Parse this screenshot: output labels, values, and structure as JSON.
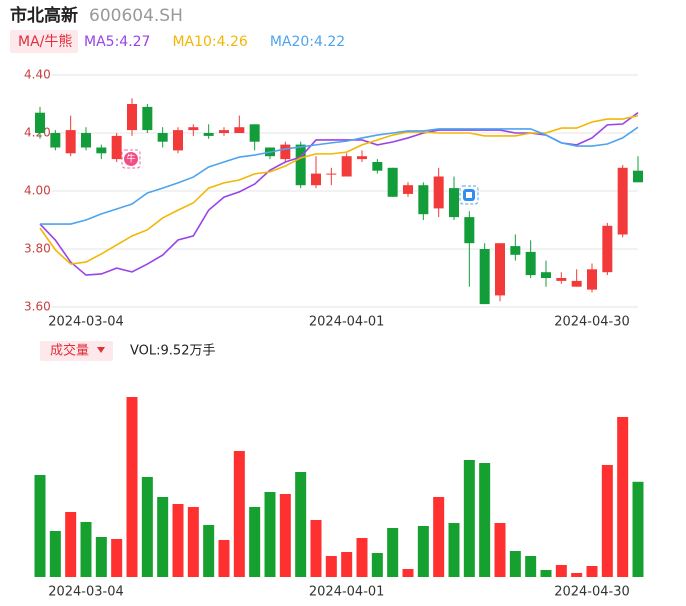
{
  "header": {
    "title": "市北高新",
    "code": "600604.SH",
    "indicator_tab": "MA/牛熊",
    "volume_tab": "成交量",
    "volume_label": "VOL:9.52万手"
  },
  "chart_data": [
    {
      "type": "candlestick",
      "categories": [
        null,
        null,
        null,
        "2024-03-04",
        null,
        null,
        null,
        null,
        null,
        null,
        null,
        null,
        null,
        null,
        null,
        null,
        null,
        null,
        null,
        null,
        "2024-04-01",
        null,
        null,
        null,
        null,
        null,
        null,
        null,
        null,
        null,
        null,
        null,
        null,
        null,
        null,
        null,
        "2024-04-30",
        null,
        null,
        null
      ],
      "open": [
        4.27,
        4.2,
        4.13,
        4.2,
        4.15,
        4.11,
        4.21,
        4.29,
        4.2,
        4.14,
        4.21,
        4.2,
        4.2,
        4.2,
        4.23,
        4.15,
        4.11,
        4.16,
        4.02,
        4.06,
        4.05,
        4.11,
        4.1,
        4.08,
        3.99,
        4.02,
        3.94,
        4.01,
        3.91,
        3.8,
        3.64,
        3.81,
        3.79,
        3.72,
        3.69,
        3.67,
        3.66,
        3.72,
        3.85,
        4.07
      ],
      "close": [
        4.2,
        4.15,
        4.21,
        4.15,
        4.13,
        4.19,
        4.3,
        4.21,
        4.17,
        4.21,
        4.22,
        4.19,
        4.21,
        4.22,
        4.17,
        4.12,
        4.16,
        4.02,
        4.06,
        4.06,
        4.12,
        4.12,
        4.07,
        3.98,
        4.02,
        3.92,
        4.05,
        3.91,
        3.82,
        3.61,
        3.82,
        3.78,
        3.71,
        3.7,
        3.7,
        3.69,
        3.73,
        3.88,
        4.08,
        4.03
      ],
      "high": [
        4.29,
        4.21,
        4.26,
        4.22,
        4.16,
        4.2,
        4.32,
        4.3,
        4.22,
        4.22,
        4.23,
        4.23,
        4.22,
        4.26,
        4.23,
        4.15,
        4.17,
        4.17,
        4.12,
        4.08,
        4.13,
        4.14,
        4.11,
        4.08,
        4.03,
        4.03,
        4.08,
        4.05,
        3.93,
        3.82,
        3.82,
        3.85,
        3.83,
        3.76,
        3.72,
        3.73,
        3.75,
        3.89,
        4.09,
        4.12
      ],
      "low": [
        4.18,
        4.14,
        4.12,
        4.14,
        4.11,
        4.1,
        4.19,
        4.2,
        4.15,
        4.13,
        4.19,
        4.18,
        4.19,
        4.2,
        4.14,
        4.11,
        4.1,
        4.01,
        4.01,
        4.02,
        4.05,
        4.1,
        4.06,
        3.98,
        3.98,
        3.9,
        3.91,
        3.9,
        3.67,
        3.61,
        3.62,
        3.76,
        3.7,
        3.67,
        3.68,
        3.67,
        3.65,
        3.71,
        3.84,
        4.03
      ],
      "up_color": "#f23a3a",
      "down_color": "#139c3a",
      "series": [
        {
          "name": "MA5:4.27",
          "color": "#9a44e6",
          "values": [
            3.886,
            3.831,
            3.755,
            3.71,
            3.714,
            3.734,
            3.721,
            3.748,
            3.779,
            3.831,
            3.845,
            3.934,
            3.979,
            3.997,
            4.024,
            4.072,
            4.1,
            4.117,
            4.176,
            4.176,
            4.176,
            4.176,
            4.159,
            4.169,
            4.183,
            4.2,
            4.21,
            4.21,
            4.21,
            4.21,
            4.21,
            4.2,
            4.2,
            4.193,
            4.166,
            4.159,
            4.183,
            4.228,
            4.231,
            4.27
          ]
        },
        {
          "name": "MA10:4.26",
          "color": "#f2b705",
          "values": [
            3.872,
            3.797,
            3.748,
            3.755,
            3.783,
            3.814,
            3.845,
            3.866,
            3.907,
            3.934,
            3.959,
            4.01,
            4.028,
            4.038,
            4.059,
            4.066,
            4.086,
            4.114,
            4.128,
            4.128,
            4.134,
            4.159,
            4.176,
            4.193,
            4.203,
            4.203,
            4.2,
            4.2,
            4.2,
            4.19,
            4.19,
            4.19,
            4.2,
            4.2,
            4.217,
            4.217,
            4.238,
            4.248,
            4.248,
            4.26
          ]
        },
        {
          "name": "MA20:4.22",
          "color": "#4ea4ee",
          "values": [
            3.886,
            3.886,
            3.886,
            3.9,
            3.921,
            3.938,
            3.955,
            3.993,
            4.01,
            4.028,
            4.048,
            4.083,
            4.1,
            4.117,
            4.124,
            4.134,
            4.145,
            4.152,
            4.159,
            4.166,
            4.172,
            4.183,
            4.193,
            4.2,
            4.207,
            4.207,
            4.214,
            4.214,
            4.214,
            4.214,
            4.214,
            4.214,
            4.214,
            4.193,
            4.166,
            4.155,
            4.155,
            4.162,
            4.183,
            4.22
          ]
        }
      ],
      "annotations": [
        "牛"
      ],
      "ylim": [
        3.6,
        4.4
      ],
      "yticks": [
        {
          "value": 3.6,
          "label": "3.60"
        },
        {
          "value": 3.8,
          "label": "3.80"
        },
        {
          "value": 4.0,
          "label": "4.00"
        },
        {
          "value": 4.2,
          "label": "4.20"
        },
        {
          "value": 4.4,
          "label": "4.40"
        }
      ],
      "grid": true
    },
    {
      "type": "bar",
      "categories": [
        null,
        null,
        null,
        "2024-03-04",
        null,
        null,
        null,
        null,
        null,
        null,
        null,
        null,
        null,
        null,
        null,
        null,
        null,
        null,
        null,
        null,
        "2024-04-01",
        null,
        null,
        null,
        null,
        null,
        null,
        null,
        null,
        null,
        null,
        null,
        null,
        null,
        null,
        null,
        "2024-04-30",
        null,
        null,
        null
      ],
      "values": [
        10.2,
        4.6,
        6.5,
        5.5,
        4.0,
        3.8,
        18.0,
        10.0,
        8.0,
        7.3,
        7.0,
        5.2,
        3.7,
        12.6,
        7.0,
        8.5,
        8.3,
        10.5,
        5.7,
        2.1,
        2.5,
        3.9,
        2.4,
        4.9,
        0.8,
        5.1,
        8.0,
        5.4,
        11.7,
        11.4,
        5.4,
        2.6,
        2.1,
        0.7,
        1.2,
        0.4,
        1.1,
        11.2,
        16.0,
        9.52
      ],
      "up_color": "#ff3030",
      "down_color": "#16a02f",
      "ylim": [
        0,
        18
      ]
    }
  ]
}
